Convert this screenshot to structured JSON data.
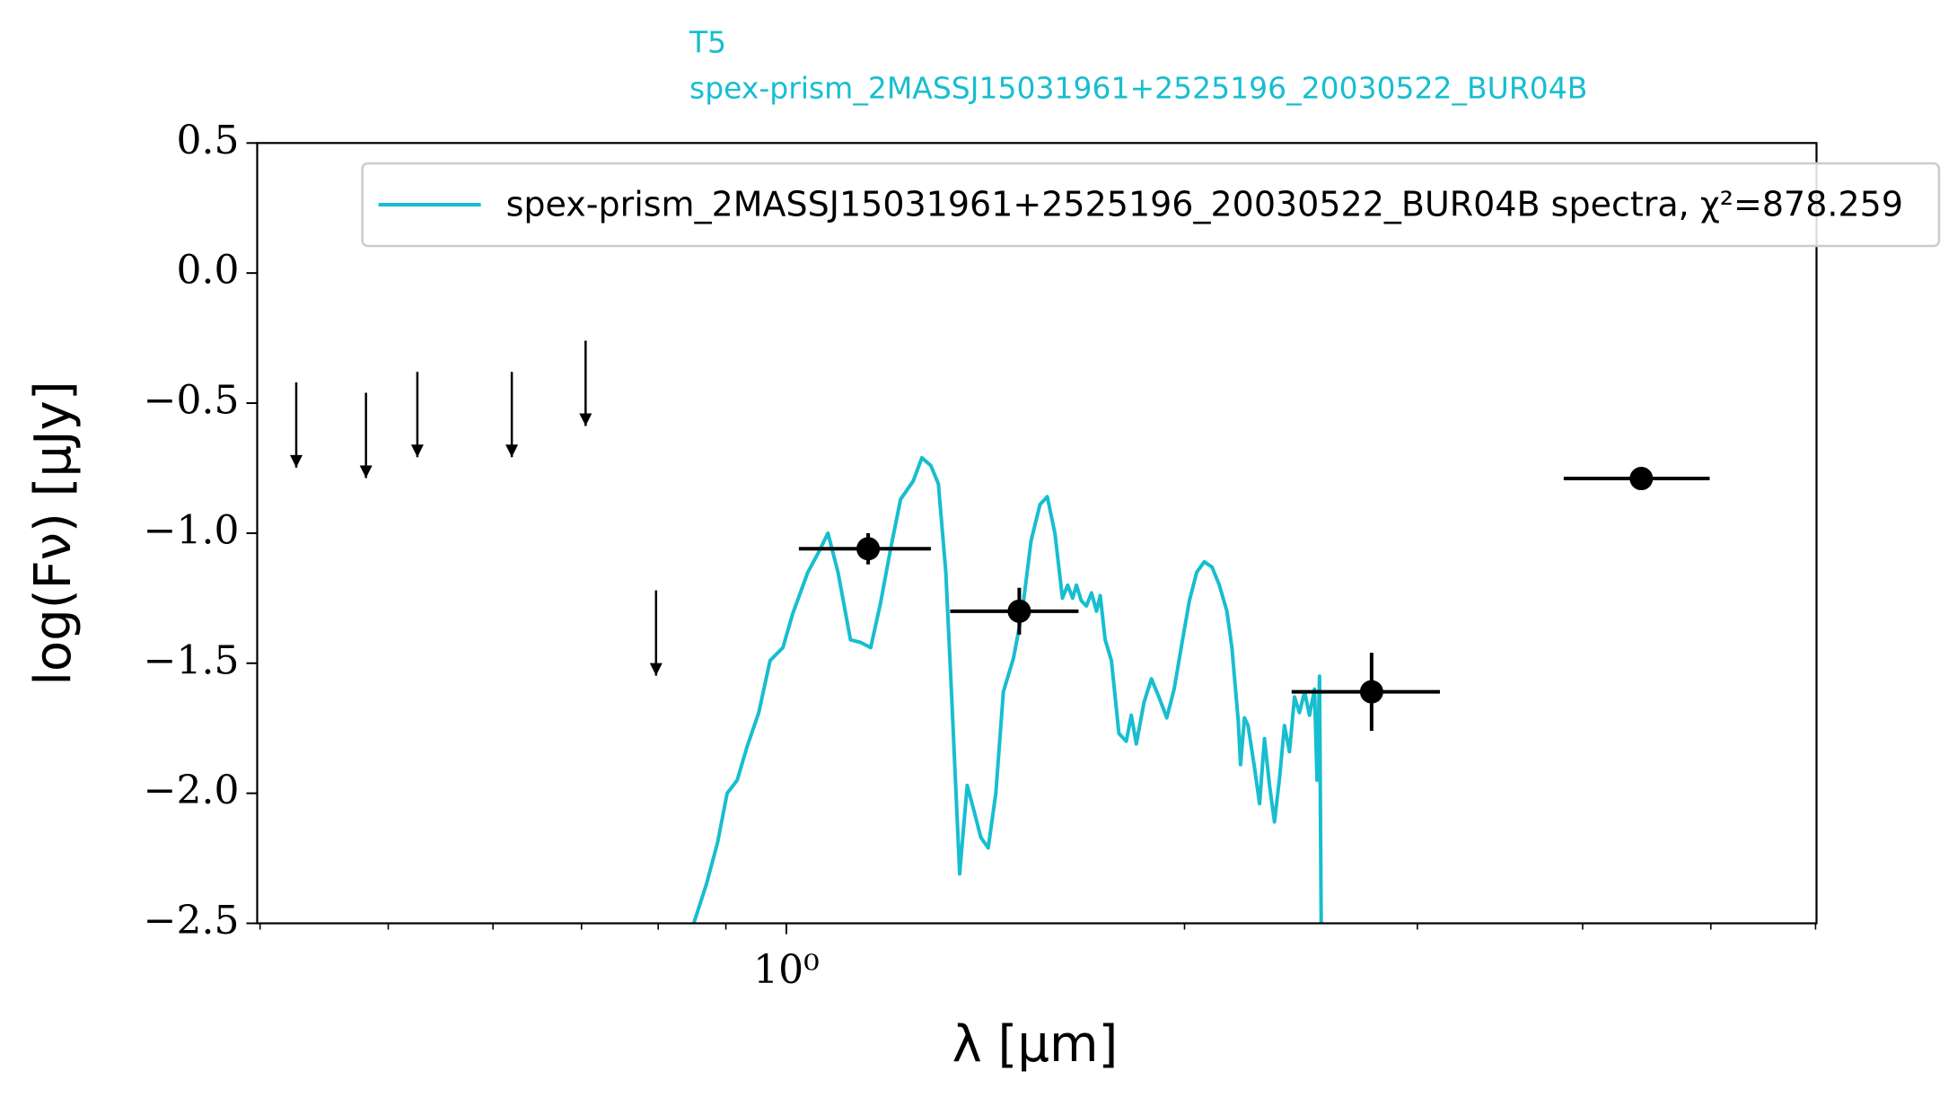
{
  "chart_data": {
    "type": "sed",
    "title": "T5",
    "subtitle": "spex-prism_2MASSJ15031961+2525196_20030522_BUR04B",
    "xlabel": "λ [μm]",
    "ylabel": "log(Fν) [μJy]",
    "xscale": "log",
    "xlim": [
      0.398,
      6.01
    ],
    "ylim": [
      -2.5,
      0.5
    ],
    "xticks": [
      {
        "value": 1,
        "label": "10⁰"
      }
    ],
    "xminor_ticks": [
      0.4,
      0.5,
      0.6,
      0.7,
      0.8,
      0.9,
      2,
      3,
      4,
      5,
      6
    ],
    "yticks": [
      0.5,
      {
        "value": 0,
        "label": "0.0"
      },
      {
        "value": -0.5,
        "label": "−0.5"
      },
      {
        "value": -1,
        "label": "−1.0"
      },
      {
        "value": -1.5,
        "label": "−1.5"
      },
      {
        "value": -2,
        "label": "−2.0"
      },
      {
        "value": -2.5,
        "label": "−2.5"
      }
    ],
    "legend": "upper right",
    "spectrum": {
      "name": "spex-prism_2MASSJ15031961+2525196_20030522_BUR04B spectra, χ²=878.259",
      "color": "#17becf",
      "x": [
        0.851,
        0.87,
        0.887,
        0.902,
        0.918,
        0.934,
        0.953,
        0.972,
        0.994,
        1.011,
        1.038,
        1.056,
        1.075,
        1.094,
        1.118,
        1.138,
        1.158,
        1.178,
        1.199,
        1.22,
        1.247,
        1.266,
        1.286,
        1.303,
        1.32,
        1.334,
        1.352,
        1.37,
        1.385,
        1.403,
        1.421,
        1.44,
        1.459,
        1.485,
        1.508,
        1.531,
        1.555,
        1.575,
        1.596,
        1.617,
        1.632,
        1.646,
        1.657,
        1.671,
        1.686,
        1.701,
        1.716,
        1.727,
        1.742,
        1.761,
        1.784,
        1.807,
        1.823,
        1.839,
        1.864,
        1.888,
        1.913,
        1.939,
        1.964,
        1.99,
        2.017,
        2.043,
        2.07,
        2.098,
        2.125,
        2.153,
        2.172,
        2.196,
        2.205,
        2.22,
        2.234,
        2.259,
        2.279,
        2.299,
        2.319,
        2.339,
        2.36,
        2.38,
        2.401,
        2.422,
        2.443,
        2.465,
        2.486,
        2.508,
        2.519,
        2.53,
        2.541
      ],
      "y": [
        -2.5,
        -2.35,
        -2.19,
        -2.0,
        -1.95,
        -1.82,
        -1.69,
        -1.49,
        -1.44,
        -1.31,
        -1.15,
        -1.08,
        -1.0,
        -1.15,
        -1.41,
        -1.42,
        -1.44,
        -1.27,
        -1.06,
        -0.87,
        -0.8,
        -0.71,
        -0.74,
        -0.81,
        -1.15,
        -1.65,
        -2.31,
        -1.97,
        -2.06,
        -2.17,
        -2.21,
        -2.0,
        -1.61,
        -1.48,
        -1.3,
        -1.03,
        -0.89,
        -0.86,
        -1.0,
        -1.25,
        -1.2,
        -1.25,
        -1.2,
        -1.26,
        -1.28,
        -1.23,
        -1.3,
        -1.24,
        -1.41,
        -1.49,
        -1.77,
        -1.8,
        -1.7,
        -1.81,
        -1.65,
        -1.56,
        -1.63,
        -1.71,
        -1.6,
        -1.43,
        -1.26,
        -1.15,
        -1.11,
        -1.13,
        -1.2,
        -1.3,
        -1.44,
        -1.72,
        -1.89,
        -1.71,
        -1.74,
        -1.9,
        -2.04,
        -1.79,
        -1.97,
        -2.11,
        -1.94,
        -1.74,
        -1.84,
        -1.63,
        -1.69,
        -1.61,
        -1.7,
        -1.6,
        -1.95,
        -1.55,
        -3.0
      ]
    },
    "photometry": {
      "color": "#000000",
      "x": [
        1.153,
        1.5,
        2.77,
        4.43
      ],
      "y": [
        -1.06,
        -1.3,
        -1.61,
        -0.79
      ],
      "xlow": [
        1.022,
        1.33,
        2.41,
        3.87
      ],
      "xhigh": [
        1.286,
        1.663,
        3.12,
        4.99
      ],
      "yerr": [
        0.06,
        0.09,
        0.15,
        0.02
      ]
    },
    "upper_limits": {
      "color": "#000000",
      "x": [
        0.426,
        0.481,
        0.526,
        0.62,
        0.705,
        0.797
      ],
      "y": [
        -0.42,
        -0.46,
        -0.38,
        -0.38,
        -0.26,
        -1.22
      ]
    }
  }
}
